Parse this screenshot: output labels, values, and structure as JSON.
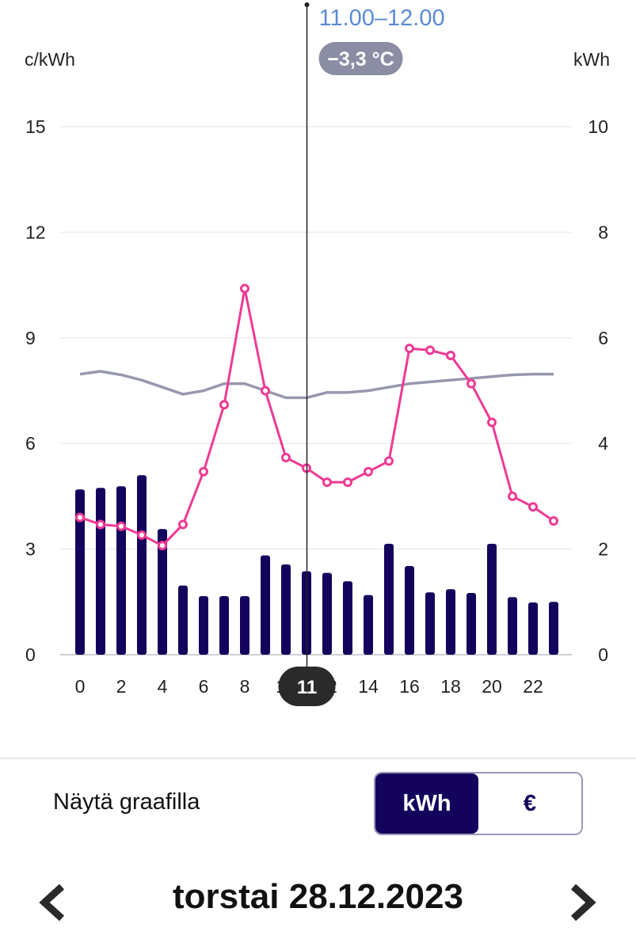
{
  "chart_data": {
    "type": "bar",
    "categories": [
      0,
      1,
      2,
      3,
      4,
      5,
      6,
      7,
      8,
      9,
      10,
      11,
      12,
      13,
      14,
      15,
      16,
      17,
      18,
      19,
      20,
      21,
      22,
      23
    ],
    "x_tick_labels": [
      "0",
      "2",
      "4",
      "6",
      "8",
      "10",
      "12",
      "14",
      "16",
      "18",
      "20",
      "22"
    ],
    "left_axis": {
      "label": "c/kWh",
      "range": [
        0,
        15
      ],
      "ticks": [
        0,
        3,
        6,
        9,
        12,
        15
      ]
    },
    "right_axis": {
      "label": "kWh",
      "range": [
        0,
        10
      ],
      "ticks": [
        0,
        2,
        4,
        6,
        8,
        10
      ]
    },
    "grid": true,
    "series": [
      {
        "name": "",
        "type": "bar",
        "axis": "right",
        "values": [
          3.13,
          3.16,
          3.19,
          3.4,
          2.38,
          1.31,
          1.11,
          1.11,
          1.11,
          1.88,
          1.71,
          1.58,
          1.55,
          1.39,
          1.13,
          2.1,
          1.68,
          1.18,
          1.24,
          1.17,
          2.1,
          1.09,
          0.99,
          1.0
        ],
        "color": "#14035c"
      },
      {
        "name": "",
        "type": "line",
        "axis": "left",
        "markers": true,
        "values": [
          3.9,
          3.7,
          3.65,
          3.4,
          3.1,
          3.7,
          5.2,
          7.1,
          10.4,
          7.5,
          5.6,
          5.3,
          4.9,
          4.9,
          5.2,
          5.5,
          8.7,
          8.65,
          8.5,
          7.7,
          6.6,
          4.5,
          4.2,
          3.8
        ],
        "color": "#ee3a95"
      },
      {
        "name": "",
        "type": "line",
        "axis": "left",
        "markers": false,
        "values": [
          7.97,
          8.05,
          7.95,
          7.8,
          7.6,
          7.4,
          7.5,
          7.7,
          7.7,
          7.5,
          7.3,
          7.3,
          7.45,
          7.45,
          7.5,
          7.6,
          7.7,
          7.75,
          7.8,
          7.85,
          7.9,
          7.95,
          7.97,
          7.97
        ],
        "color": "#9698ad"
      }
    ],
    "selected": {
      "hour_index": 11,
      "hour_label": "11",
      "range_label": "11.00–12.00",
      "temperature": "−3,3 °C"
    }
  },
  "controls": {
    "show_label": "Näytä graafilla",
    "options": [
      "kWh",
      "€"
    ],
    "active_option": "kWh"
  },
  "date": {
    "label": "torstai 28.12.2023",
    "prev_icon": "chevron-left-icon",
    "next_icon": "chevron-right-icon"
  },
  "colors": {
    "bar": "#14035c",
    "price_line": "#ee3a95",
    "temperature_line": "#9698ad",
    "selected_range": "#5b8ad6",
    "badge": "#8a8da3",
    "hour_badge": "#2a2a2a"
  }
}
